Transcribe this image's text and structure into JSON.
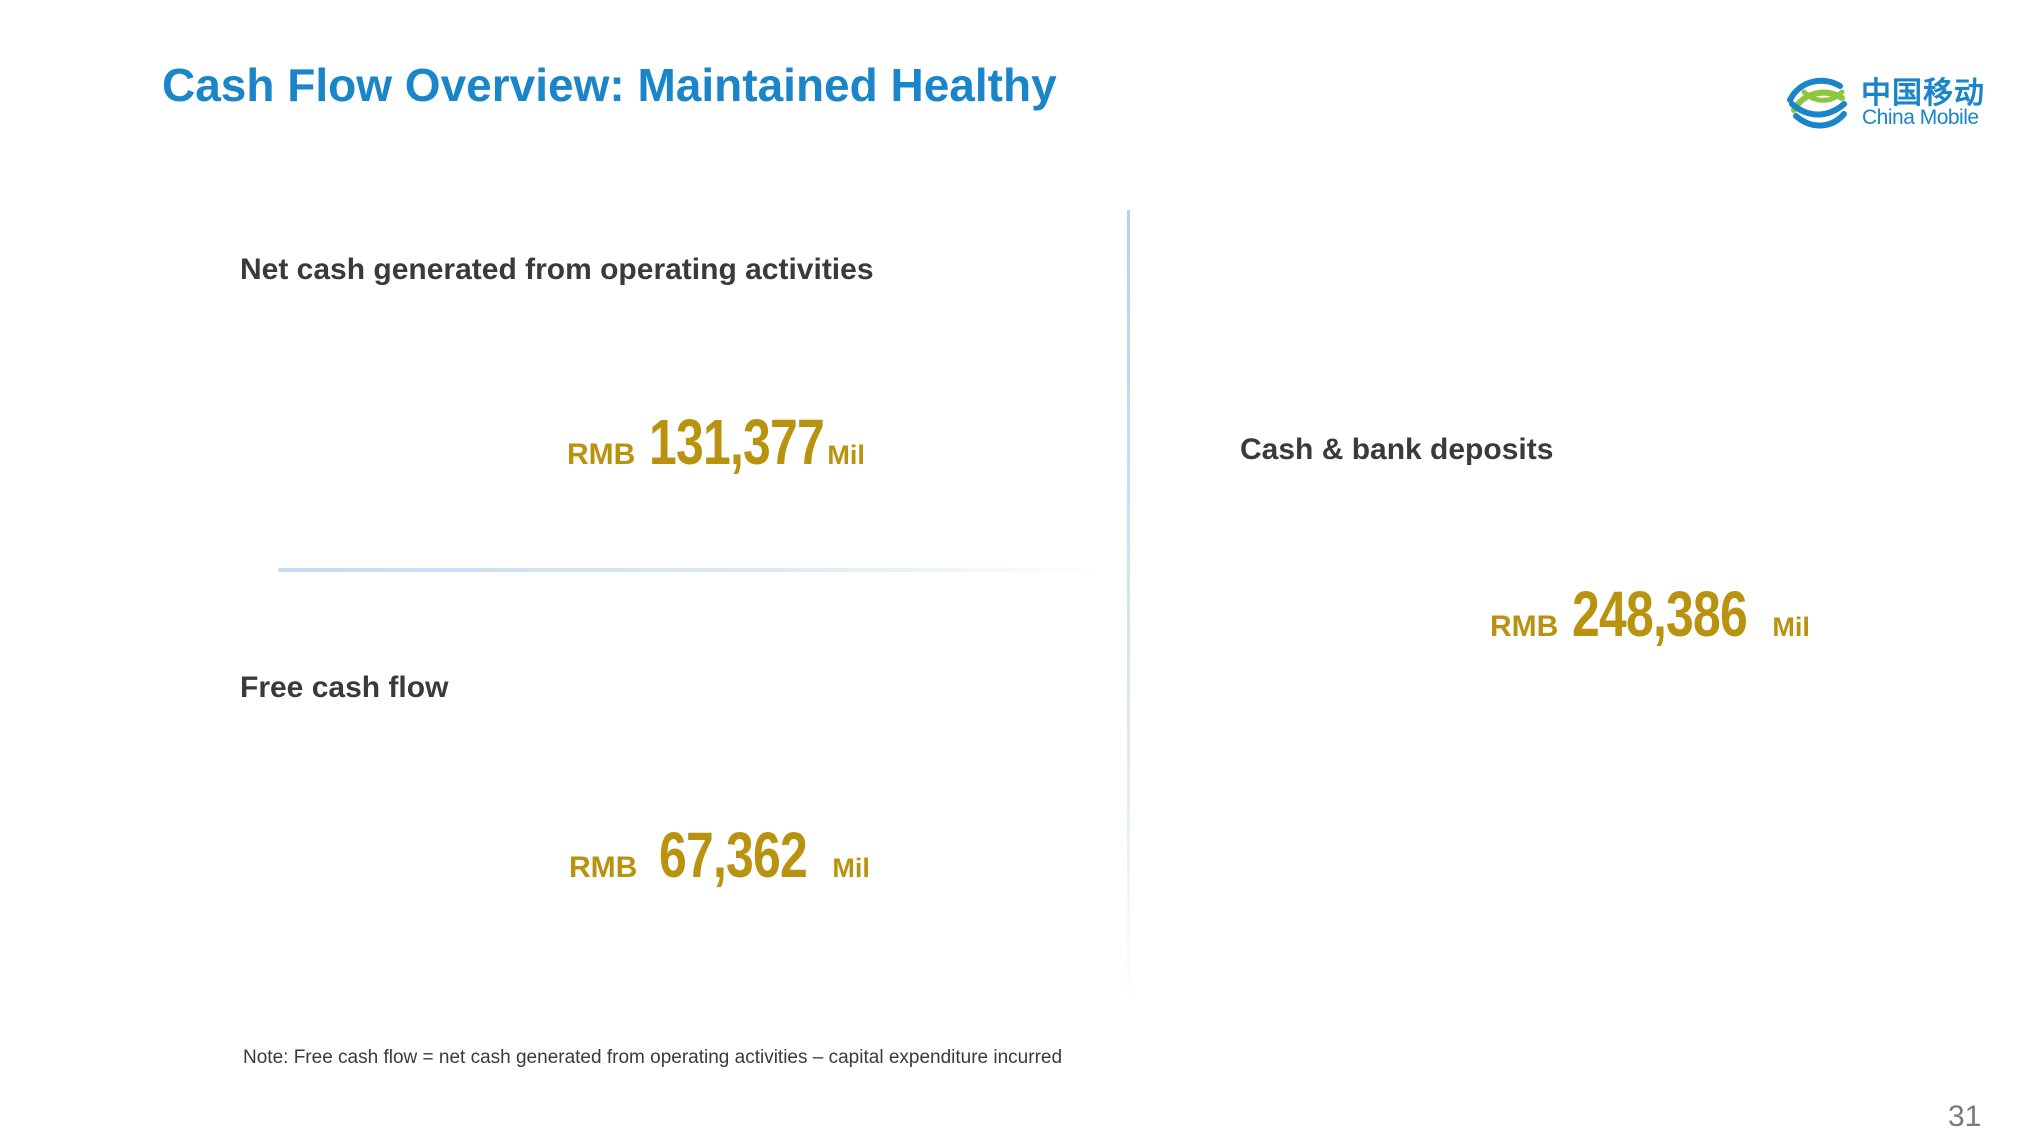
{
  "slide": {
    "title": "Cash Flow Overview: Maintained Healthy",
    "page_number": "31"
  },
  "logo": {
    "icon": "china-mobile-logo-icon",
    "name_cn": "中国移动",
    "name_en": "China Mobile",
    "colors": {
      "blue": "#1a85c9",
      "green": "#8dc63f"
    }
  },
  "metrics": {
    "operating_cash": {
      "label": "Net cash generated from operating activities",
      "prefix": "RMB",
      "value": "131,377",
      "suffix": "Mil"
    },
    "free_cash_flow": {
      "label": "Free cash flow",
      "prefix": "RMB",
      "value": "67,362",
      "suffix": "Mil"
    },
    "cash_deposits": {
      "label": "Cash & bank deposits",
      "prefix": "RMB",
      "value": "248,386",
      "suffix": "Mil"
    }
  },
  "footnote": "Note: Free cash flow = net cash generated from operating activities – capital expenditure incurred",
  "colors": {
    "title": "#1a85c9",
    "value_gold": "#b9930f",
    "label_text": "#3a3a3a"
  }
}
